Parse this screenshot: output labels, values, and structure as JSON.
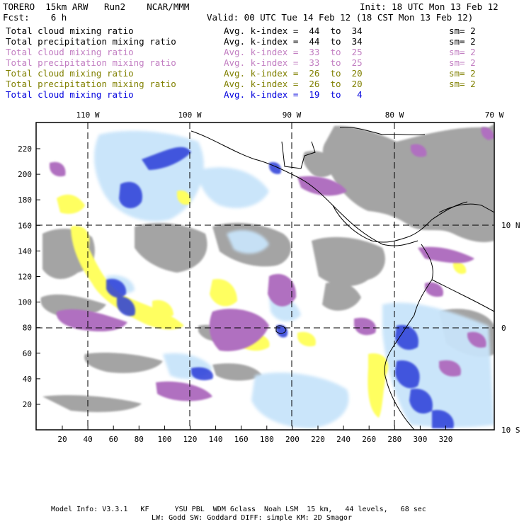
{
  "header": {
    "left_top": "TORERO  15km ARW   Run2    NCAR/MMM",
    "init": "Init: 18 UTC Mon 13 Feb 12",
    "fcst": "Fcst:    6 h",
    "valid": "Valid: 00 UTC Tue 14 Feb 12 (18 CST Mon 13 Feb 12)"
  },
  "legend": [
    {
      "field": "Total cloud mixing ratio",
      "kindex": "Avg. k-index =  44  to  34",
      "sm": "sm= 2",
      "color": "#000000"
    },
    {
      "field": "Total precipitation mixing ratio",
      "kindex": "Avg. k-index =  44  to  34",
      "sm": "sm= 2",
      "color": "#000000"
    },
    {
      "field": "Total cloud mixing ratio",
      "kindex": "Avg. k-index =  33  to  25",
      "sm": "sm= 2",
      "color": "#c27ec2"
    },
    {
      "field": "Total precipitation mixing ratio",
      "kindex": "Avg. k-index =  33  to  25",
      "sm": "sm= 2",
      "color": "#c27ec2"
    },
    {
      "field": "Total cloud mixing ratio",
      "kindex": "Avg. k-index =  26  to  20",
      "sm": "sm= 2",
      "color": "#808000"
    },
    {
      "field": "Total precipitation mixing ratio",
      "kindex": "Avg. k-index =  26  to  20",
      "sm": "sm= 2",
      "color": "#808000"
    },
    {
      "field": "Total cloud mixing ratio",
      "kindex": "Avg. k-index =  19  to   4",
      "sm": "",
      "color": "#0000dd"
    }
  ],
  "map": {
    "x_ticks": [
      "20",
      "40",
      "60",
      "80",
      "100",
      "120",
      "140",
      "160",
      "180",
      "200",
      "220",
      "240",
      "260",
      "280",
      "300",
      "320"
    ],
    "y_ticks": [
      "20",
      "40",
      "60",
      "80",
      "100",
      "120",
      "140",
      "160",
      "180",
      "200",
      "220"
    ],
    "lon_labels": [
      "110 W",
      "100 W",
      "90 W",
      "80 W",
      "70 W"
    ],
    "lat_labels": [
      "10 N",
      "0",
      "10 S"
    ],
    "colors": {
      "gray": "#a0a0a0",
      "purple": "#b070c0",
      "yellow": "#ffff60",
      "lightblue": "#c8e4fa",
      "blue": "#2a3cd8",
      "darkblue": "#1420c8"
    }
  },
  "footer": {
    "line1": "Model Info: V3.3.1   KF      YSU PBL  WDM 6class  Noah LSM  15 km,   44 levels,   68 sec",
    "line2": "LW: Godd SW: Goddard DIFF: simple KM: 2D Smagor"
  }
}
